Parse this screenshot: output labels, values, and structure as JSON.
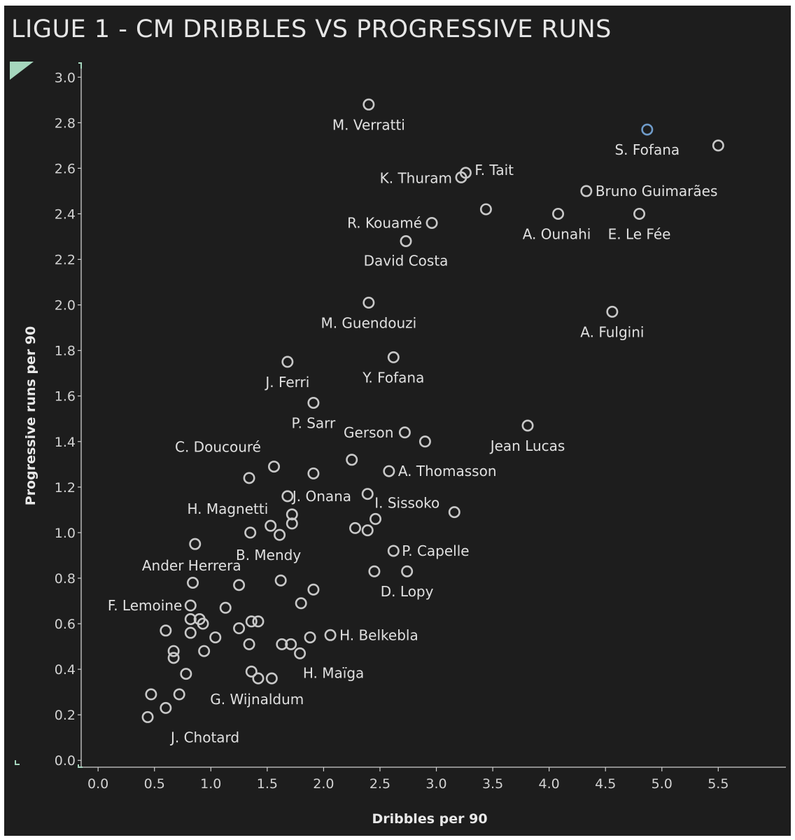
{
  "chart_data": {
    "type": "scatter",
    "title": "LIGUE 1 - CM DRIBBLES VS PROGRESSIVE RUNS",
    "xlabel": "Dribbles per 90",
    "ylabel": "Progressive runs per 90",
    "xlim": [
      -0.15,
      6.1
    ],
    "ylim": [
      -0.03,
      3.05
    ],
    "x_ticks": [
      "0.0",
      "0.5",
      "1.0",
      "1.5",
      "2.0",
      "2.5",
      "3.0",
      "3.5",
      "4.0",
      "4.5",
      "5.0",
      "5.5"
    ],
    "y_ticks": [
      "0.0",
      "0.2",
      "0.4",
      "0.6",
      "0.8",
      "1.0",
      "1.2",
      "1.4",
      "1.6",
      "1.8",
      "2.0",
      "2.2",
      "2.4",
      "2.6",
      "2.8",
      "3.0"
    ],
    "colors": {
      "point": "#c8c8c8",
      "highlight": "#6f9bc9",
      "background": "#1d1d1d",
      "axis": "#cfcfcf"
    },
    "points": [
      {
        "x": 2.4,
        "y": 2.88,
        "label": "M. Verratti",
        "anchor": "middle",
        "dy": 36
      },
      {
        "x": 4.87,
        "y": 2.77,
        "label": "S. Fofana",
        "anchor": "middle",
        "dy": 36,
        "highlight": true
      },
      {
        "x": 5.5,
        "y": 2.7,
        "label": ""
      },
      {
        "x": 3.26,
        "y": 2.58,
        "label": "F. Tait",
        "anchor": "start",
        "dx": 13,
        "dy": 3
      },
      {
        "x": 3.22,
        "y": 2.56,
        "label": "K. Thuram",
        "anchor": "end",
        "dx": -13,
        "dy": 8
      },
      {
        "x": 4.33,
        "y": 2.5,
        "label": "Bruno Guimarães",
        "anchor": "start",
        "dx": 13,
        "dy": 7
      },
      {
        "x": 3.44,
        "y": 2.42,
        "label": ""
      },
      {
        "x": 4.08,
        "y": 2.4,
        "label": "A. Ounahi",
        "anchor": "middle",
        "dx": -2,
        "dy": 36
      },
      {
        "x": 4.8,
        "y": 2.4,
        "label": "E. Le Fée",
        "anchor": "middle",
        "dy": 36
      },
      {
        "x": 2.96,
        "y": 2.36,
        "label": "R. Kouamé",
        "anchor": "end",
        "dx": -14,
        "dy": 7
      },
      {
        "x": 2.73,
        "y": 2.28,
        "label": "David Costa",
        "anchor": "middle",
        "dy": 35
      },
      {
        "x": 2.4,
        "y": 2.01,
        "label": "M. Guendouzi",
        "anchor": "middle",
        "dy": 36
      },
      {
        "x": 4.56,
        "y": 1.97,
        "label": "A. Fulgini",
        "anchor": "middle",
        "dy": 36
      },
      {
        "x": 1.68,
        "y": 1.75,
        "label": "J. Ferri",
        "anchor": "middle",
        "dy": 36
      },
      {
        "x": 2.62,
        "y": 1.77,
        "label": "Y. Fofana",
        "anchor": "middle",
        "dy": 36
      },
      {
        "x": 1.91,
        "y": 1.57,
        "label": "P. Sarr",
        "anchor": "middle",
        "dy": 36
      },
      {
        "x": 3.81,
        "y": 1.47,
        "label": "Jean Lucas",
        "anchor": "middle",
        "dy": 36
      },
      {
        "x": 2.72,
        "y": 1.44,
        "label": "Gerson",
        "anchor": "end",
        "dx": -16,
        "dy": 7
      },
      {
        "x": 2.9,
        "y": 1.4,
        "label": ""
      },
      {
        "x": 1.56,
        "y": 1.29,
        "label": "C. Doucouré",
        "anchor": "middle",
        "dx": -80,
        "dy": -21
      },
      {
        "x": 2.25,
        "y": 1.32,
        "label": ""
      },
      {
        "x": 1.34,
        "y": 1.24,
        "label": ""
      },
      {
        "x": 1.91,
        "y": 1.26,
        "label": ""
      },
      {
        "x": 2.58,
        "y": 1.27,
        "label": "A. Thomasson",
        "anchor": "start",
        "dx": 13,
        "dy": 7
      },
      {
        "x": 1.68,
        "y": 1.16,
        "label": "J. Onana",
        "anchor": "start",
        "dx": 7,
        "dy": 7
      },
      {
        "x": 2.39,
        "y": 1.17,
        "label": "I. Sissoko",
        "anchor": "start",
        "dx": 10,
        "dy": 20
      },
      {
        "x": 3.16,
        "y": 1.09,
        "label": ""
      },
      {
        "x": 1.72,
        "y": 1.08,
        "label": "H. Magnetti",
        "anchor": "end",
        "dx": -34,
        "dy": -1
      },
      {
        "x": 1.72,
        "y": 1.04,
        "label": ""
      },
      {
        "x": 1.53,
        "y": 1.03,
        "label": ""
      },
      {
        "x": 2.46,
        "y": 1.06,
        "label": ""
      },
      {
        "x": 2.28,
        "y": 1.02,
        "label": ""
      },
      {
        "x": 2.39,
        "y": 1.01,
        "label": ""
      },
      {
        "x": 1.35,
        "y": 1.0,
        "label": ""
      },
      {
        "x": 1.61,
        "y": 0.99,
        "label": "B. Mendy",
        "anchor": "middle",
        "dx": -16,
        "dy": 36
      },
      {
        "x": 0.86,
        "y": 0.95,
        "label": "Ander Herrera",
        "anchor": "middle",
        "dx": -5,
        "dy": 38
      },
      {
        "x": 2.62,
        "y": 0.92,
        "label": "P. Capelle",
        "anchor": "start",
        "dx": 12,
        "dy": 7
      },
      {
        "x": 2.45,
        "y": 0.83,
        "label": ""
      },
      {
        "x": 2.74,
        "y": 0.83,
        "label": "D. Lopy",
        "anchor": "middle",
        "dy": 36
      },
      {
        "x": 0.84,
        "y": 0.78,
        "label": ""
      },
      {
        "x": 1.25,
        "y": 0.77,
        "label": ""
      },
      {
        "x": 1.62,
        "y": 0.79,
        "label": ""
      },
      {
        "x": 1.91,
        "y": 0.75,
        "label": ""
      },
      {
        "x": 0.82,
        "y": 0.68,
        "label": "F. Lemoine",
        "anchor": "end",
        "dx": -12,
        "dy": 7
      },
      {
        "x": 1.13,
        "y": 0.67,
        "label": ""
      },
      {
        "x": 1.8,
        "y": 0.69,
        "label": ""
      },
      {
        "x": 0.82,
        "y": 0.62,
        "label": ""
      },
      {
        "x": 0.9,
        "y": 0.62,
        "label": ""
      },
      {
        "x": 0.93,
        "y": 0.6,
        "label": ""
      },
      {
        "x": 1.36,
        "y": 0.61,
        "label": ""
      },
      {
        "x": 1.42,
        "y": 0.61,
        "label": ""
      },
      {
        "x": 0.6,
        "y": 0.57,
        "label": ""
      },
      {
        "x": 1.25,
        "y": 0.58,
        "label": ""
      },
      {
        "x": 0.82,
        "y": 0.56,
        "label": ""
      },
      {
        "x": 1.04,
        "y": 0.54,
        "label": ""
      },
      {
        "x": 1.88,
        "y": 0.54,
        "label": ""
      },
      {
        "x": 2.06,
        "y": 0.55,
        "label": "H. Belkebla",
        "anchor": "start",
        "dx": 13,
        "dy": 7
      },
      {
        "x": 1.34,
        "y": 0.51,
        "label": ""
      },
      {
        "x": 1.63,
        "y": 0.51,
        "label": ""
      },
      {
        "x": 1.71,
        "y": 0.51,
        "label": ""
      },
      {
        "x": 0.67,
        "y": 0.48,
        "label": ""
      },
      {
        "x": 0.94,
        "y": 0.48,
        "label": ""
      },
      {
        "x": 1.79,
        "y": 0.47,
        "label": "H. Maïga",
        "anchor": "middle",
        "dx": 48,
        "dy": 35
      },
      {
        "x": 0.67,
        "y": 0.45,
        "label": ""
      },
      {
        "x": 0.78,
        "y": 0.38,
        "label": ""
      },
      {
        "x": 1.36,
        "y": 0.39,
        "label": ""
      },
      {
        "x": 1.42,
        "y": 0.36,
        "label": ""
      },
      {
        "x": 1.54,
        "y": 0.36,
        "label": "G. Wijnaldum",
        "anchor": "middle",
        "dx": -21,
        "dy": 37
      },
      {
        "x": 0.47,
        "y": 0.29,
        "label": ""
      },
      {
        "x": 0.72,
        "y": 0.29,
        "label": ""
      },
      {
        "x": 0.6,
        "y": 0.23,
        "label": ""
      },
      {
        "x": 0.44,
        "y": 0.19,
        "label": "J. Chotard",
        "anchor": "middle",
        "dx": 82,
        "dy": 36
      }
    ]
  }
}
